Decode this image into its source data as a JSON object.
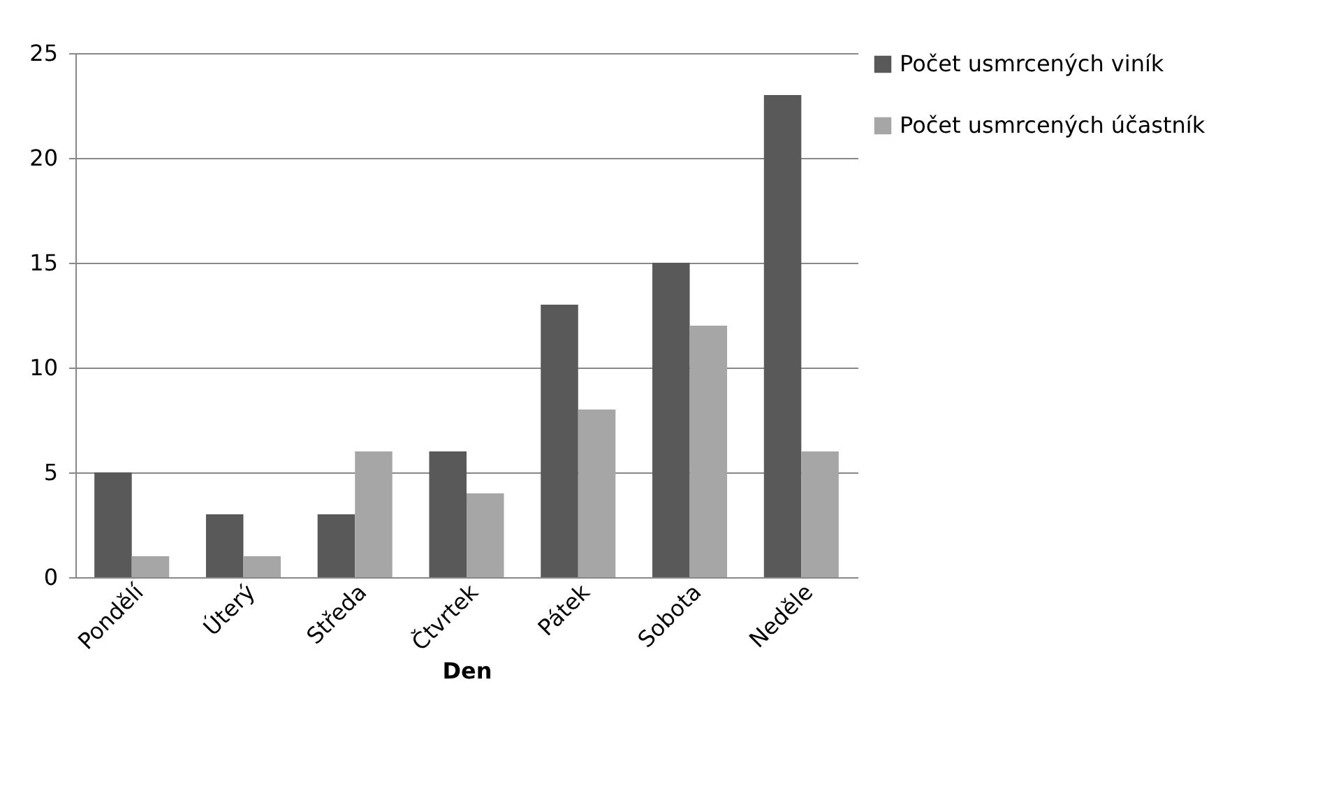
{
  "chart_data": {
    "type": "bar",
    "xlabel": "Den",
    "categories": [
      "Pondělí",
      "Úterý",
      "Středa",
      "Čtvrtek",
      "Pátek",
      "Sobota",
      "Neděle"
    ],
    "series": [
      {
        "name": "Počet usmrcených viník",
        "color": "#595959",
        "values": [
          5,
          3,
          3,
          6,
          13,
          15,
          23
        ]
      },
      {
        "name": "Počet usmrcených účastník",
        "color": "#a6a6a6",
        "values": [
          1,
          1,
          6,
          4,
          8,
          12,
          6
        ]
      }
    ],
    "ylim": [
      0,
      25
    ],
    "yticks": [
      0,
      5,
      10,
      15,
      20,
      25
    ],
    "grid": "y",
    "legend": "right"
  }
}
